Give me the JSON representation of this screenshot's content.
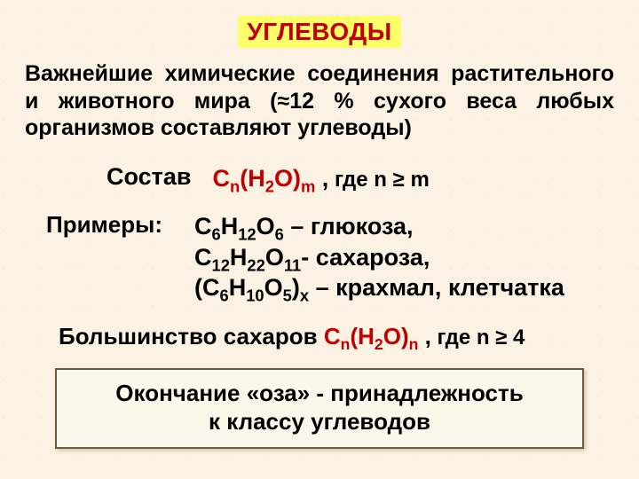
{
  "colors": {
    "background": "#fbf2e4",
    "title_bg": "#ffff6a",
    "accent_red": "#c00000",
    "box_border": "#6b5a3d",
    "box_bg": "#fcf7eb",
    "text": "#000000"
  },
  "typography": {
    "family": "Arial",
    "title_size_pt": 28,
    "body_size_pt": 25,
    "formula_size_pt": 27,
    "bold": true
  },
  "title": "УГЛЕВОДЫ",
  "intro": {
    "prefix": "Важнейшие химические соединения расти­тельного и животного мира (",
    "approx": "≈",
    "percent": "12 % сухого веса любых организмов составляют углеводы)"
  },
  "composition": {
    "label": "Состав",
    "formula_prefix": "C",
    "sub_n": "n",
    "h2o": "(H",
    "sub2": "2",
    "o_close": "O)",
    "sub_m": "m",
    "spacer": " ,",
    "condition_prefix": " где n",
    "geq": " ≥ ",
    "condition_suffix": "m"
  },
  "examples": {
    "label": "Примеры:",
    "items": [
      {
        "parts": [
          "C",
          "6",
          "H",
          "12",
          "O",
          "6",
          " – глюкоза,"
        ]
      },
      {
        "parts": [
          "C",
          "12",
          "H",
          "22",
          "O",
          "11",
          "- сахароза,"
        ]
      },
      {
        "parts": [
          "(C",
          "6",
          "H",
          "10",
          "O",
          "5",
          ")",
          "x",
          " – крахмал, клетчатка"
        ]
      }
    ]
  },
  "majority": {
    "prefix": "Большинство сахаров ",
    "formula_prefix": "C",
    "sub_n1": "n",
    "h2o": "(H",
    "sub2": "2",
    "o_close": "O)",
    "sub_n2": "n",
    "spacer": " ,",
    "condition_prefix": " где n",
    "geq": " ≥ ",
    "condition_value": "4"
  },
  "footer": {
    "line1_a": "Окончание ",
    "line1_b": "«оза»",
    "line1_c": " - принадлежность",
    "line2": "к классу углеводов"
  }
}
